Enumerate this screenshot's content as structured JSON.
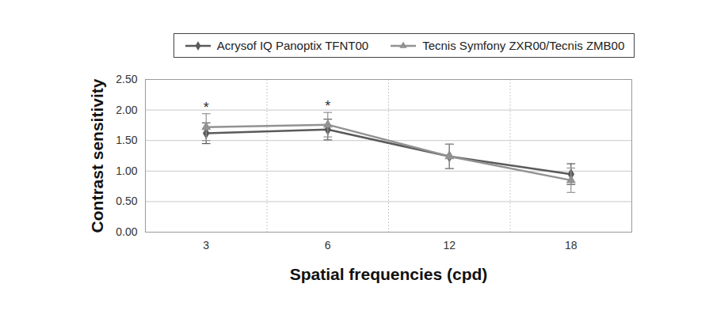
{
  "chart_data": {
    "type": "line",
    "categories": [
      "3",
      "6",
      "12",
      "18"
    ],
    "series": [
      {
        "name": "Acrysof IQ Panoptix TFNT00",
        "color": "#5a5a5a",
        "marker": "diamond",
        "values": [
          1.62,
          1.68,
          1.24,
          0.95
        ],
        "errors": [
          0.17,
          0.17,
          0.2,
          0.17
        ]
      },
      {
        "name": "Tecnis Symfony ZXR00/Tecnis ZMB00",
        "color": "#929292",
        "marker": "triangle",
        "values": [
          1.72,
          1.76,
          1.24,
          0.85
        ],
        "errors": [
          0.22,
          0.2,
          0.2,
          0.2
        ]
      }
    ],
    "x_label": "Spatial frequencies (cpd)",
    "y_label": "Contrast sensitivity",
    "ylim": [
      0,
      2.5
    ],
    "yticks": [
      {
        "value": 0,
        "label": "0.00"
      },
      {
        "value": 0.5,
        "label": "0.50"
      },
      {
        "value": 1,
        "label": "1.00"
      },
      {
        "value": 1.5,
        "label": "1.50"
      },
      {
        "value": 2,
        "label": "2.00"
      },
      {
        "value": 2.5,
        "label": "2.50"
      }
    ],
    "grid": true,
    "legend": "top",
    "annotations": [
      {
        "category": "3",
        "text": "*"
      },
      {
        "category": "6",
        "text": "*"
      }
    ]
  }
}
